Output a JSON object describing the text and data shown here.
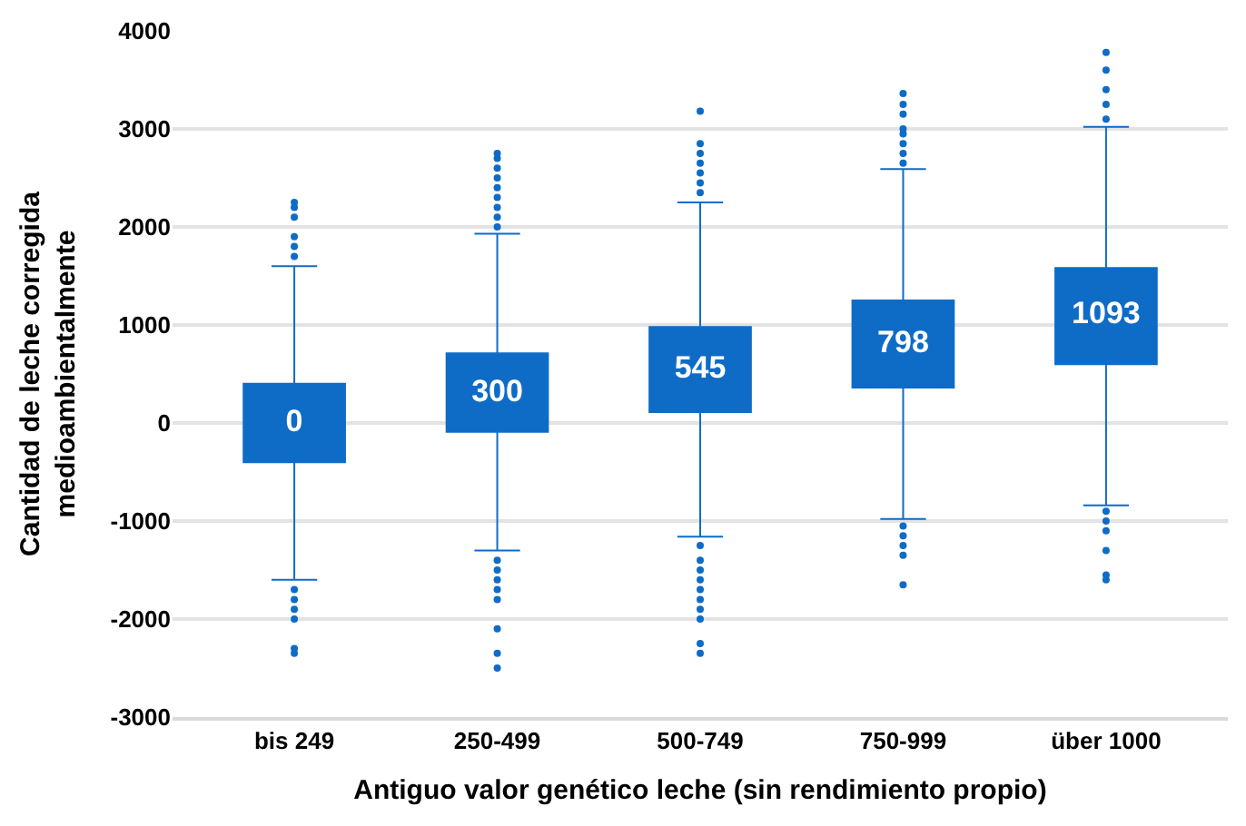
{
  "chart_data": {
    "type": "box",
    "xlabel": "Antiguo valor genético leche (sin rendimiento propio)",
    "ylabel": "Cantidad de leche corregida medioambientalmente",
    "categories": [
      "bis 249",
      "250-499",
      "500-749",
      "750-999",
      "über 1000"
    ],
    "color": "#0f6cc6",
    "boxes": [
      {
        "low": -1600,
        "q1": -400,
        "median": 0,
        "q3": 400,
        "high": 1600,
        "outliers": [
          1700,
          1800,
          1900,
          2100,
          2200,
          2250,
          -1700,
          -1800,
          -1900,
          -2000,
          -2300,
          -2350
        ]
      },
      {
        "low": -1300,
        "q1": -90,
        "median": 300,
        "q3": 710,
        "high": 1930,
        "outliers": [
          2000,
          2100,
          2200,
          2300,
          2400,
          2500,
          2600,
          2700,
          2750,
          -1400,
          -1500,
          -1600,
          -1700,
          -1800,
          -2100,
          -2350,
          -2500
        ]
      },
      {
        "low": -1160,
        "q1": 110,
        "median": 545,
        "q3": 980,
        "high": 2250,
        "outliers": [
          2350,
          2450,
          2550,
          2650,
          2750,
          2850,
          3180,
          -1250,
          -1400,
          -1500,
          -1600,
          -1700,
          -1800,
          -1900,
          -2000,
          -2250,
          -2350
        ]
      },
      {
        "low": -980,
        "q1": 360,
        "median": 798,
        "q3": 1250,
        "high": 2590,
        "outliers": [
          2650,
          2750,
          2850,
          2950,
          3000,
          3150,
          3250,
          3360,
          -1050,
          -1150,
          -1250,
          -1350,
          -1650
        ]
      },
      {
        "low": -840,
        "q1": 600,
        "median": 1093,
        "q3": 1580,
        "high": 3020,
        "outliers": [
          3100,
          3250,
          3400,
          3600,
          3780,
          -900,
          -1000,
          -1100,
          -1300,
          -1550,
          -1600
        ]
      }
    ],
    "value_labels": [
      "0",
      "300",
      "545",
      "798",
      "1093"
    ],
    "ylim": [
      -3000,
      4000
    ],
    "yticks": [
      -3000,
      -2000,
      -1000,
      0,
      1000,
      2000,
      3000,
      4000
    ],
    "grid": "y"
  }
}
